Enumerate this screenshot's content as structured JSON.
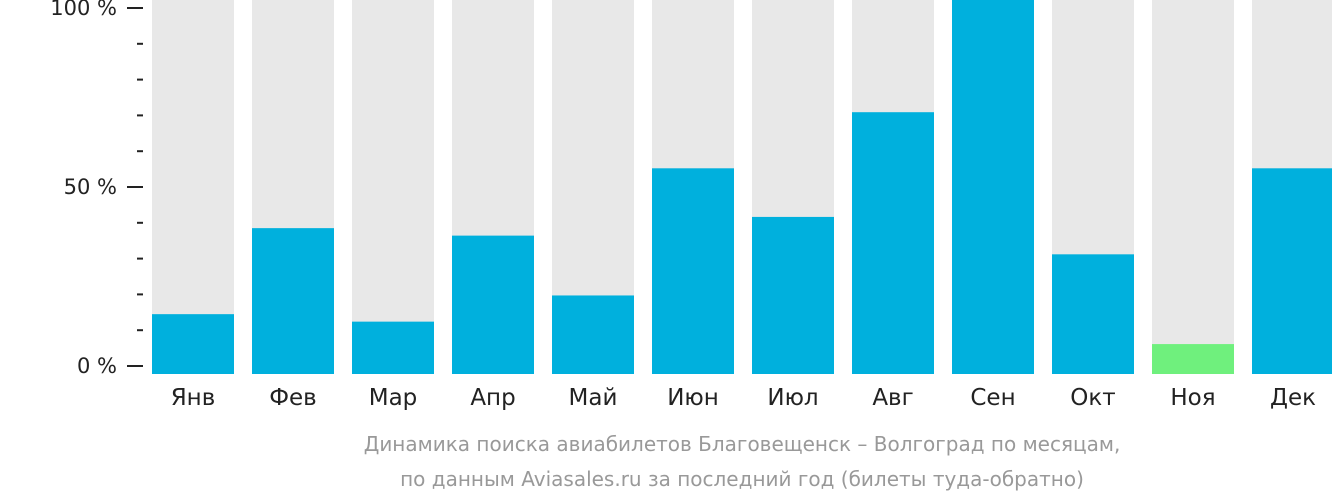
{
  "chart_data": {
    "type": "bar",
    "categories": [
      "Янв",
      "Фев",
      "Мар",
      "Апр",
      "Май",
      "Июн",
      "Июл",
      "Авг",
      "Сен",
      "Окт",
      "Ноя",
      "Дек"
    ],
    "values": [
      16,
      39,
      14,
      37,
      21,
      55,
      42,
      70,
      100,
      32,
      8,
      55
    ],
    "ylim": [
      0,
      100
    ],
    "yticks": [
      {
        "value": 0,
        "label": "0 %"
      },
      {
        "value": 50,
        "label": "50 %"
      },
      {
        "value": 100,
        "label": "100 %"
      }
    ],
    "minor_tick_step": 10,
    "highlight_index": 10,
    "colors": {
      "bar": "#00b0dd",
      "highlight": "#6ff07d",
      "track": "#e8e8e8",
      "axis": "#222222"
    },
    "caption": [
      "Динамика поиска авиабилетов Благовещенск – Волгоград по месяцам,",
      "по данным Aviasales.ru за последний год (билеты туда-обратно)"
    ]
  }
}
